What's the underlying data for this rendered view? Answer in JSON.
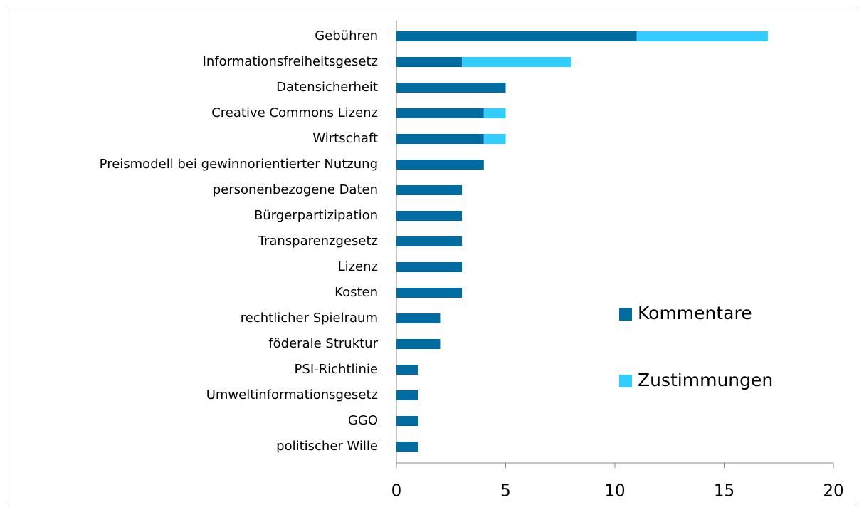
{
  "chart_data": {
    "type": "stacked_barh",
    "categories": [
      "Gebühren",
      "Informationsfreiheitsgesetz",
      "Datensicherheit",
      "Creative Commons Lizenz",
      "Wirtschaft",
      "Preismodell bei gewinnorientierter Nutzung",
      "personenbezogene Daten",
      "Bürgerpartizipation",
      "Transparenzgesetz",
      "Lizenz",
      "Kosten",
      "rechtlicher Spielraum",
      "föderale Struktur",
      "PSI-Richtlinie",
      "Umweltinformationsgesetz",
      "GGO",
      "politischer Wille"
    ],
    "series": [
      {
        "name": "Kommentare",
        "color": "#006c9f",
        "values": [
          11,
          3,
          5,
          4,
          4,
          4,
          3,
          3,
          3,
          3,
          3,
          2,
          2,
          1,
          1,
          1,
          1
        ]
      },
      {
        "name": "Zustimmungen",
        "color": "#33ccff",
        "values": [
          6,
          5,
          0,
          1,
          1,
          0,
          0,
          0,
          0,
          0,
          0,
          0,
          0,
          0,
          0,
          0,
          0
        ]
      }
    ],
    "xlim": [
      0,
      20
    ],
    "xticks": [
      0,
      5,
      10,
      15,
      20
    ],
    "legend": "right"
  }
}
